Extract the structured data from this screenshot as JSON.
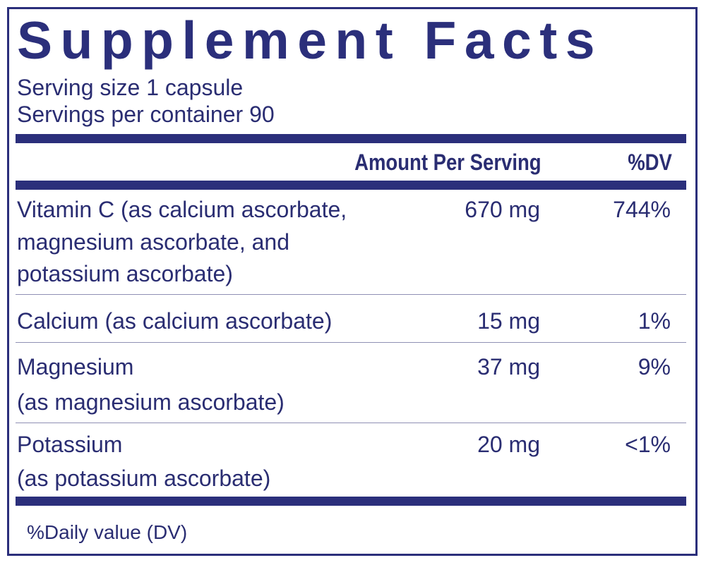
{
  "title": "Supplement Facts",
  "serving_size": "Serving size  1 capsule",
  "servings_per_container": "Servings per container  90",
  "header": {
    "amount": "Amount Per Serving",
    "dv": "%DV"
  },
  "rows": [
    {
      "name_lines": [
        "Vitamin C (as calcium ascorbate,",
        "magnesium ascorbate, and",
        "potassium ascorbate)"
      ],
      "amount": "670 mg",
      "dv": "744%"
    },
    {
      "name_lines": [
        "Calcium (as calcium ascorbate)"
      ],
      "amount": "15 mg",
      "dv": "1%"
    },
    {
      "name_lines": [
        "Magnesium",
        "(as magnesium ascorbate)"
      ],
      "amount": "37 mg",
      "dv": "9%"
    },
    {
      "name_lines": [
        "Potassium",
        "(as potassium ascorbate)"
      ],
      "amount": "20 mg",
      "dv": "<1%"
    }
  ],
  "footnote": "%Daily value (DV)",
  "colors": {
    "primary": "#2b2f7b",
    "text": "#2a2d72"
  }
}
